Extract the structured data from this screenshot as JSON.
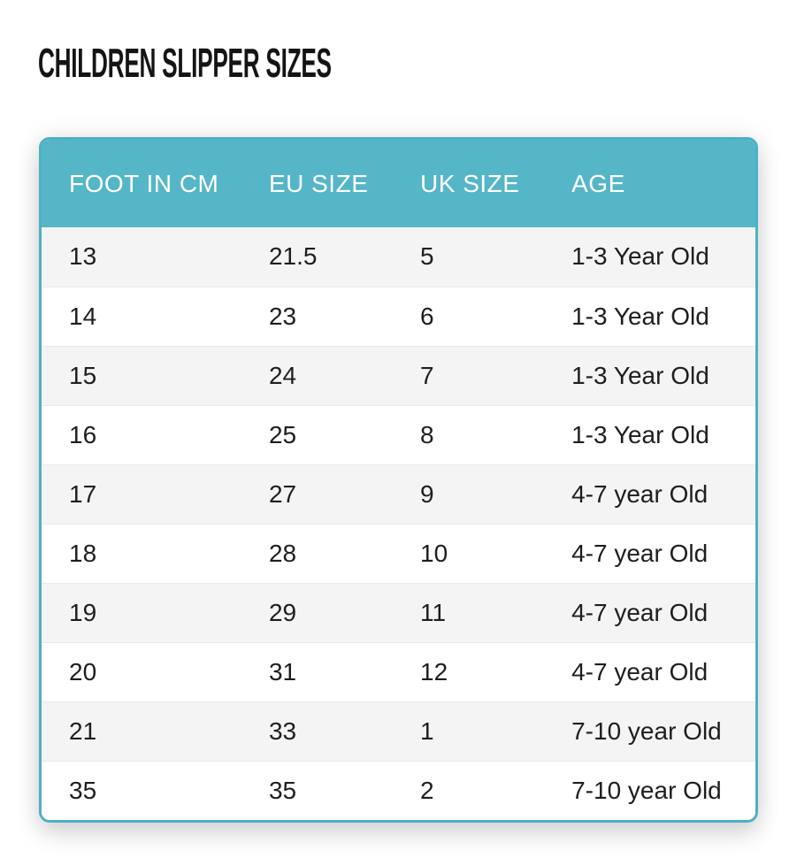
{
  "page": {
    "title": "CHILDREN SLIPPER SIZES",
    "background": "#ffffff"
  },
  "style": {
    "header_bg": "#55b6c8",
    "header_text": "#ffffff",
    "card_border": "#4db0c3",
    "row_alt_bg": "#f4f4f4",
    "row_bg": "#ffffff",
    "row_divider": "#e9e9e9",
    "cell_text": "#1e1e1e",
    "title_text": "#141414"
  },
  "chart_data": {
    "type": "table",
    "title": "CHILDREN SLIPPER SIZES",
    "columns": [
      "FOOT IN CM",
      "EU SIZE",
      "UK SIZE",
      "AGE"
    ],
    "rows": [
      [
        "13",
        "21.5",
        "5",
        "1-3 Year Old"
      ],
      [
        "14",
        "23",
        "6",
        "1-3 Year Old"
      ],
      [
        "15",
        "24",
        "7",
        "1-3 Year Old"
      ],
      [
        "16",
        "25",
        "8",
        "1-3 Year Old"
      ],
      [
        "17",
        "27",
        "9",
        "4-7 year Old"
      ],
      [
        "18",
        "28",
        "10",
        "4-7 year Old"
      ],
      [
        "19",
        "29",
        "11",
        "4-7 year Old"
      ],
      [
        "20",
        "31",
        "12",
        "4-7 year Old"
      ],
      [
        "21",
        "33",
        "1",
        "7-10 year Old"
      ],
      [
        "35",
        "35",
        "2",
        "7-10 year Old"
      ]
    ]
  }
}
